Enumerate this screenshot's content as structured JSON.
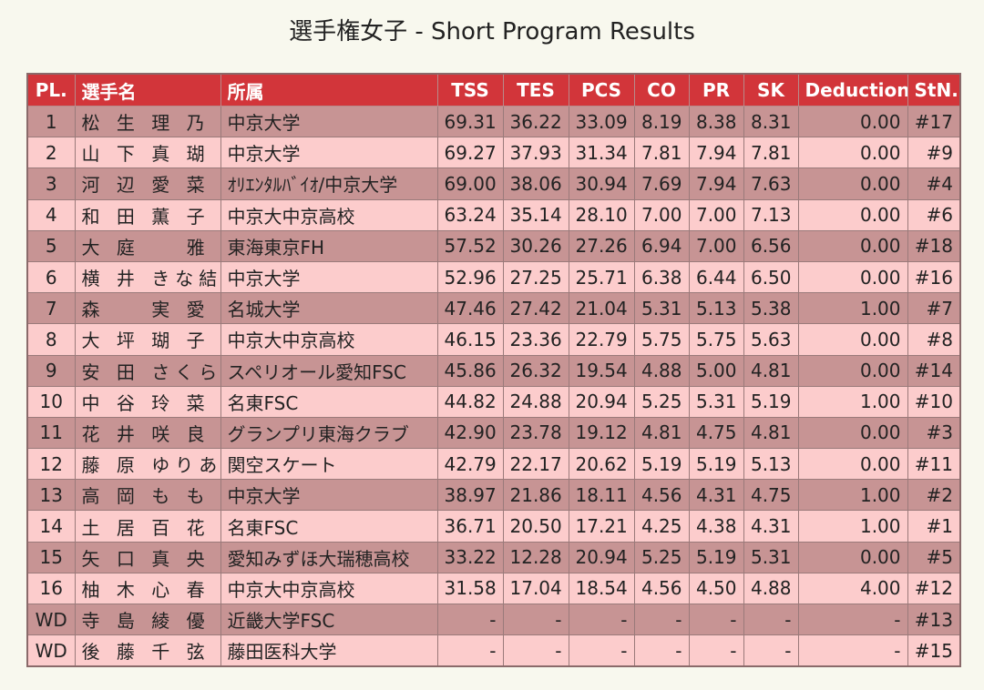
{
  "title": "選手権女子 - Short Program Results",
  "columns": [
    "PL.",
    "選手名",
    "所属",
    "TSS",
    "TES",
    "PCS",
    "CO",
    "PR",
    "SK",
    "Deduction",
    "StN."
  ],
  "rows": [
    {
      "pl": "1",
      "name": "松 生 理 乃",
      "club": "中京大学",
      "tss": "69.31",
      "tes": "36.22",
      "pcs": "33.09",
      "co": "8.19",
      "pr": "8.38",
      "sk": "8.31",
      "ded": "0.00",
      "stn": "#17"
    },
    {
      "pl": "2",
      "name": "山 下 真 瑚",
      "club": "中京大学",
      "tss": "69.27",
      "tes": "37.93",
      "pcs": "31.34",
      "co": "7.81",
      "pr": "7.94",
      "sk": "7.81",
      "ded": "0.00",
      "stn": "#9"
    },
    {
      "pl": "3",
      "name": "河 辺 愛 菜",
      "club": "ｵﾘｴﾝﾀﾙﾊﾞｲｵ/中京大学",
      "tss": "69.00",
      "tes": "38.06",
      "pcs": "30.94",
      "co": "7.69",
      "pr": "7.94",
      "sk": "7.63",
      "ded": "0.00",
      "stn": "#4"
    },
    {
      "pl": "4",
      "name": "和 田 薫 子",
      "club": "中京大中京高校",
      "tss": "63.24",
      "tes": "35.14",
      "pcs": "28.10",
      "co": "7.00",
      "pr": "7.00",
      "sk": "7.13",
      "ded": "0.00",
      "stn": "#6"
    },
    {
      "pl": "5",
      "name": "大 庭 　 雅",
      "club": "東海東京FH",
      "tss": "57.52",
      "tes": "30.26",
      "pcs": "27.26",
      "co": "6.94",
      "pr": "7.00",
      "sk": "6.56",
      "ded": "0.00",
      "stn": "#18"
    },
    {
      "pl": "6",
      "name": "横 井 きな結",
      "club": "中京大学",
      "tss": "52.96",
      "tes": "27.25",
      "pcs": "25.71",
      "co": "6.38",
      "pr": "6.44",
      "sk": "6.50",
      "ded": "0.00",
      "stn": "#16"
    },
    {
      "pl": "7",
      "name": "森 　 実 愛",
      "club": "名城大学",
      "tss": "47.46",
      "tes": "27.42",
      "pcs": "21.04",
      "co": "5.31",
      "pr": "5.13",
      "sk": "5.38",
      "ded": "1.00",
      "stn": "#7"
    },
    {
      "pl": "8",
      "name": "大 坪 瑚 子",
      "club": "中京大中京高校",
      "tss": "46.15",
      "tes": "23.36",
      "pcs": "22.79",
      "co": "5.75",
      "pr": "5.75",
      "sk": "5.63",
      "ded": "0.00",
      "stn": "#8"
    },
    {
      "pl": "9",
      "name": "安 田 さくら",
      "club": "スペリオール愛知FSC",
      "tss": "45.86",
      "tes": "26.32",
      "pcs": "19.54",
      "co": "4.88",
      "pr": "5.00",
      "sk": "4.81",
      "ded": "0.00",
      "stn": "#14"
    },
    {
      "pl": "10",
      "name": "中 谷 玲 菜",
      "club": "名東FSC",
      "tss": "44.82",
      "tes": "24.88",
      "pcs": "20.94",
      "co": "5.25",
      "pr": "5.31",
      "sk": "5.19",
      "ded": "1.00",
      "stn": "#10"
    },
    {
      "pl": "11",
      "name": "花 井 咲 良",
      "club": "グランプリ東海クラブ",
      "tss": "42.90",
      "tes": "23.78",
      "pcs": "19.12",
      "co": "4.81",
      "pr": "4.75",
      "sk": "4.81",
      "ded": "0.00",
      "stn": "#3"
    },
    {
      "pl": "12",
      "name": "藤 原 ゆりあ",
      "club": "関空スケート",
      "tss": "42.79",
      "tes": "22.17",
      "pcs": "20.62",
      "co": "5.19",
      "pr": "5.19",
      "sk": "5.13",
      "ded": "0.00",
      "stn": "#11"
    },
    {
      "pl": "13",
      "name": "高 岡 も も",
      "club": "中京大学",
      "tss": "38.97",
      "tes": "21.86",
      "pcs": "18.11",
      "co": "4.56",
      "pr": "4.31",
      "sk": "4.75",
      "ded": "1.00",
      "stn": "#2"
    },
    {
      "pl": "14",
      "name": "土 居 百 花",
      "club": "名東FSC",
      "tss": "36.71",
      "tes": "20.50",
      "pcs": "17.21",
      "co": "4.25",
      "pr": "4.38",
      "sk": "4.31",
      "ded": "1.00",
      "stn": "#1"
    },
    {
      "pl": "15",
      "name": "矢 口 真 央",
      "club": "愛知みずほ大瑞穂高校",
      "tss": "33.22",
      "tes": "12.28",
      "pcs": "20.94",
      "co": "5.25",
      "pr": "5.19",
      "sk": "5.31",
      "ded": "0.00",
      "stn": "#5"
    },
    {
      "pl": "16",
      "name": "柚 木 心 春",
      "club": "中京大中京高校",
      "tss": "31.58",
      "tes": "17.04",
      "pcs": "18.54",
      "co": "4.56",
      "pr": "4.50",
      "sk": "4.88",
      "ded": "4.00",
      "stn": "#12"
    },
    {
      "pl": "WD",
      "name": "寺 島 綾 優",
      "club": "近畿大学FSC",
      "tss": "-",
      "tes": "-",
      "pcs": "-",
      "co": "-",
      "pr": "-",
      "sk": "-",
      "ded": "-",
      "stn": "#13"
    },
    {
      "pl": "WD",
      "name": "後 藤 千 弦",
      "club": "藤田医科大学",
      "tss": "-",
      "tes": "-",
      "pcs": "-",
      "co": "-",
      "pr": "-",
      "sk": "-",
      "ded": "-",
      "stn": "#15"
    }
  ]
}
